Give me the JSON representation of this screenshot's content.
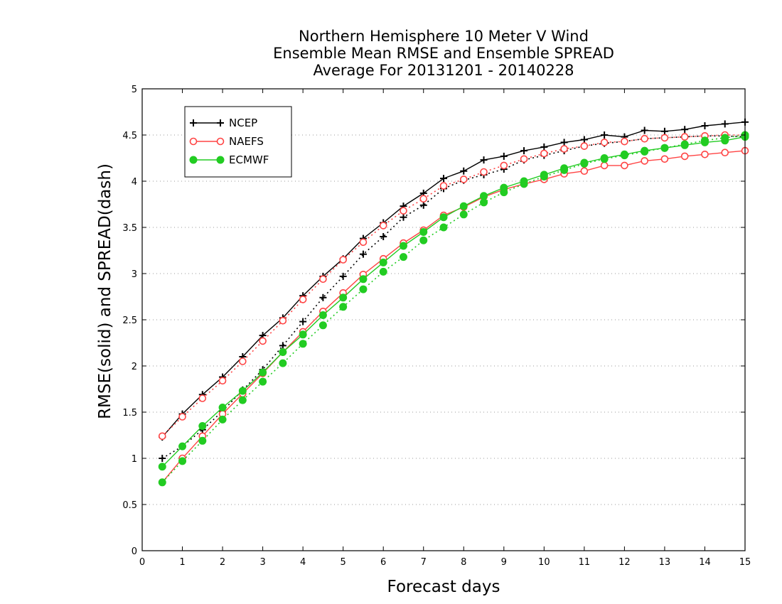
{
  "chart_data": {
    "type": "line",
    "title": [
      "Northern Hemisphere 10 Meter V Wind",
      "Ensemble Mean RMSE and Ensemble SPREAD",
      "Average For 20131201 - 20140228"
    ],
    "xlabel": "Forecast days",
    "ylabel": "RMSE(solid) and SPREAD(dash)",
    "xlim": [
      0,
      15
    ],
    "ylim": [
      0,
      5
    ],
    "xticks": [
      "0",
      "1",
      "2",
      "3",
      "4",
      "5",
      "6",
      "7",
      "8",
      "9",
      "10",
      "11",
      "12",
      "13",
      "14",
      "15"
    ],
    "yticks": [
      "0",
      "0.5",
      "1",
      "1.5",
      "2",
      "2.5",
      "3",
      "3.5",
      "4",
      "4.5",
      "5"
    ],
    "grid": "horizontal-dotted",
    "legend_position": "top-left",
    "x": [
      0.5,
      1,
      1.5,
      2,
      2.5,
      3,
      3.5,
      4,
      4.5,
      5,
      5.5,
      6,
      6.5,
      7,
      7.5,
      8,
      8.5,
      9,
      9.5,
      10,
      10.5,
      11,
      11.5,
      12,
      12.5,
      13,
      13.5,
      14,
      14.5,
      15
    ],
    "series": [
      {
        "name": "NCEP",
        "color": "#000000",
        "marker": "plus",
        "rmse": [
          1.23,
          1.48,
          1.69,
          1.88,
          2.1,
          2.33,
          2.52,
          2.76,
          2.97,
          3.16,
          3.38,
          3.55,
          3.73,
          3.87,
          4.03,
          4.11,
          4.23,
          4.27,
          4.33,
          4.37,
          4.42,
          4.45,
          4.5,
          4.48,
          4.55,
          4.54,
          4.56,
          4.6,
          4.62,
          4.64
        ],
        "spread": [
          1.0,
          1.13,
          1.31,
          1.51,
          1.74,
          1.96,
          2.22,
          2.48,
          2.74,
          2.97,
          3.21,
          3.4,
          3.61,
          3.74,
          3.92,
          4.01,
          4.07,
          4.13,
          4.23,
          4.28,
          4.33,
          4.38,
          4.41,
          4.43,
          4.46,
          4.47,
          4.48,
          4.49,
          4.49,
          4.48
        ]
      },
      {
        "name": "NAEFS",
        "color": "#ff4444",
        "marker": "circle-open",
        "rmse": [
          0.74,
          1.0,
          1.24,
          1.48,
          1.7,
          1.92,
          2.15,
          2.37,
          2.59,
          2.79,
          2.99,
          3.16,
          3.33,
          3.47,
          3.63,
          3.72,
          3.83,
          3.91,
          3.97,
          4.02,
          4.08,
          4.11,
          4.17,
          4.17,
          4.22,
          4.24,
          4.27,
          4.29,
          4.31,
          4.33
        ],
        "spread": [
          1.24,
          1.45,
          1.65,
          1.84,
          2.05,
          2.27,
          2.49,
          2.72,
          2.94,
          3.15,
          3.34,
          3.52,
          3.68,
          3.81,
          3.95,
          4.02,
          4.1,
          4.17,
          4.24,
          4.3,
          4.35,
          4.38,
          4.42,
          4.43,
          4.46,
          4.47,
          4.48,
          4.49,
          4.5,
          4.5
        ]
      },
      {
        "name": "ECMWF",
        "color": "#22cc22",
        "marker": "circle-filled",
        "rmse": [
          0.91,
          1.13,
          1.35,
          1.55,
          1.73,
          1.93,
          2.15,
          2.34,
          2.55,
          2.74,
          2.94,
          3.12,
          3.3,
          3.45,
          3.61,
          3.73,
          3.84,
          3.93,
          4.0,
          4.07,
          4.14,
          4.2,
          4.25,
          4.29,
          4.33,
          4.36,
          4.39,
          4.42,
          4.44,
          4.48
        ],
        "spread": [
          0.74,
          0.97,
          1.19,
          1.42,
          1.63,
          1.83,
          2.03,
          2.24,
          2.44,
          2.64,
          2.83,
          3.02,
          3.18,
          3.36,
          3.5,
          3.64,
          3.77,
          3.88,
          3.97,
          4.05,
          4.12,
          4.19,
          4.24,
          4.28,
          4.32,
          4.36,
          4.4,
          4.44,
          4.47,
          4.5
        ]
      }
    ]
  }
}
